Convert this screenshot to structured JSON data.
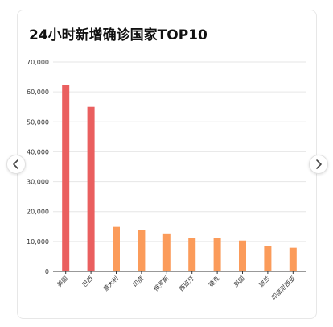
{
  "card": {
    "title": "24小时新增确诊国家TOP10"
  },
  "nav": {
    "prev_icon": "chevron-left-icon",
    "next_icon": "chevron-right-icon"
  },
  "colors": {
    "top": "#ea5f5f",
    "rest": "#fb9b5a",
    "grid": "#e6e6e6",
    "axis": "#333333",
    "tick_text": "#333333"
  },
  "chart_data": {
    "type": "bar",
    "title": "24小时新增确诊国家TOP10",
    "xlabel": "",
    "ylabel": "",
    "categories": [
      "美国",
      "巴西",
      "意大利",
      "印度",
      "俄罗斯",
      "西班牙",
      "捷克",
      "英国",
      "波兰",
      "印度尼西亚"
    ],
    "values": [
      62300,
      55000,
      14900,
      14000,
      12700,
      11300,
      11200,
      10300,
      8500,
      7900
    ],
    "ylim": [
      0,
      70000
    ],
    "yticks": [
      0,
      10000,
      20000,
      30000,
      40000,
      50000,
      60000,
      70000
    ],
    "ytick_labels": [
      "0",
      "10,000",
      "20,000",
      "30,000",
      "40,000",
      "50,000",
      "60,000",
      "70,000"
    ],
    "highlight_count": 2,
    "grid": true,
    "legend": "none"
  }
}
